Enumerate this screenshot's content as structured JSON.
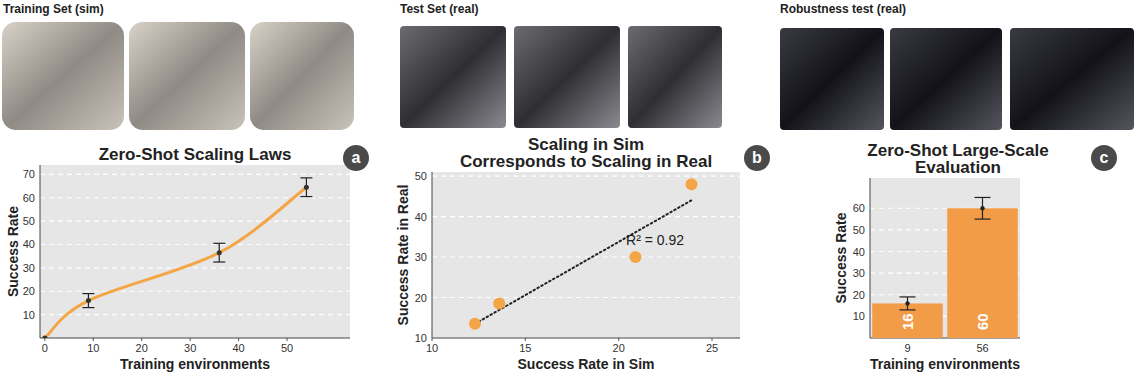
{
  "image_groups": [
    {
      "label": "Training Set (sim)"
    },
    {
      "label": "Test Set (real)"
    },
    {
      "label": "Robustness test (real)"
    }
  ],
  "chart_data": [
    {
      "type": "line",
      "title": "Zero-Shot Scaling Laws",
      "panel": "a",
      "x_label": "Training environments",
      "y_label": "Success Rate",
      "x": [
        0,
        9,
        36,
        54
      ],
      "values": [
        0,
        16,
        36.5,
        64.5
      ],
      "errors": [
        null,
        3,
        4,
        4
      ],
      "color": "#f4a545",
      "marker": "dot",
      "xlim": [
        -1,
        63
      ],
      "xticks": [
        0,
        10,
        20,
        30,
        40,
        50
      ],
      "ylim": [
        0,
        74
      ],
      "yticks": [
        10,
        20,
        30,
        40,
        50,
        60,
        70
      ],
      "grid": true
    },
    {
      "type": "scatter",
      "title": [
        "Scaling in Sim",
        "Corresponds to Scaling in Real"
      ],
      "panel": "b",
      "x_label": "Success Rate in Sim",
      "y_label": "Success Rate in Real",
      "x": [
        12.3,
        13.6,
        20.9,
        23.9
      ],
      "values": [
        13.5,
        18.5,
        30,
        48
      ],
      "trendline": {
        "x": [
          12.3,
          23.9
        ],
        "values": [
          13.5,
          44
        ]
      },
      "annotations": [
        "R² = 0.92"
      ],
      "color": "#f4a545",
      "marker": "circle",
      "xlim": [
        10,
        26.5
      ],
      "xticks": [
        10,
        15,
        20,
        25
      ],
      "ylim": [
        10,
        51
      ],
      "yticks": [
        10,
        20,
        30,
        40,
        50
      ],
      "grid": true
    },
    {
      "type": "bar",
      "title": [
        "Zero-Shot Large-Scale",
        "Evaluation"
      ],
      "panel": "c",
      "x_label": "Training environments",
      "y_label": "Success Rate",
      "categories": [
        "9",
        "56"
      ],
      "values": [
        16,
        60
      ],
      "errors": [
        3,
        5
      ],
      "color": "#f29c48",
      "data_labels": true,
      "ylim": [
        0,
        74
      ],
      "yticks": [
        10,
        20,
        30,
        40,
        50,
        60
      ],
      "grid": true
    }
  ]
}
